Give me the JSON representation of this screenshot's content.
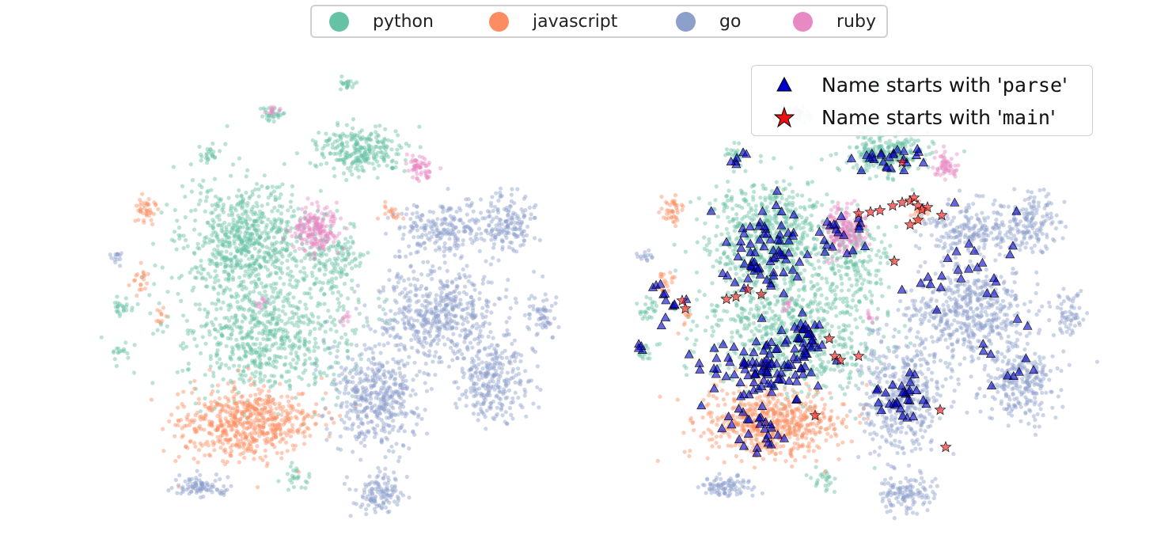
{
  "legend": {
    "items": [
      {
        "label": "python",
        "color": "#66c2a5"
      },
      {
        "label": "javascript",
        "color": "#fc8d62"
      },
      {
        "label": "go",
        "color": "#8da0cb"
      },
      {
        "label": "ruby",
        "color": "#e78ac3"
      }
    ]
  },
  "overlay_legend": {
    "parse": {
      "prefix": "Name starts with '",
      "code": "parse",
      "suffix": "'",
      "marker": "triangle",
      "color": "#0000cc"
    },
    "main": {
      "prefix": "Name starts with '",
      "code": "main",
      "suffix": "'",
      "marker": "star",
      "color": "#ee1111"
    }
  },
  "chart_data": [
    {
      "type": "scatter",
      "panel": "left",
      "title": "",
      "xlabel": "",
      "ylabel": "",
      "axes": "off",
      "series": [
        {
          "name": "python",
          "color": "#66c2a5"
        },
        {
          "name": "javascript",
          "color": "#fc8d62"
        },
        {
          "name": "go",
          "color": "#8da0cb"
        },
        {
          "name": "ruby",
          "color": "#e78ac3"
        }
      ]
    },
    {
      "type": "scatter",
      "panel": "right",
      "title": "",
      "xlabel": "",
      "ylabel": "",
      "axes": "off",
      "series": [
        {
          "name": "python",
          "color": "#66c2a5"
        },
        {
          "name": "javascript",
          "color": "#fc8d62"
        },
        {
          "name": "go",
          "color": "#8da0cb"
        },
        {
          "name": "ruby",
          "color": "#e78ac3"
        }
      ],
      "highlights": [
        {
          "label": "Name starts with 'parse'",
          "marker": "triangle",
          "color": "#0000cc"
        },
        {
          "label": "Name starts with 'main'",
          "marker": "star",
          "color": "#ee1111"
        }
      ],
      "legend_position": "upper-right"
    }
  ]
}
